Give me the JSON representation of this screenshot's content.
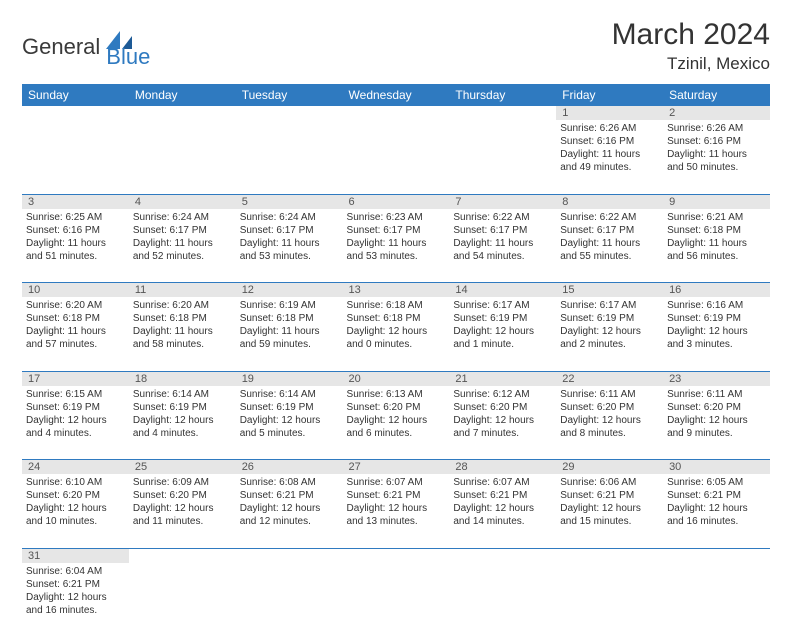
{
  "brand": {
    "general": "General",
    "blue": "Blue"
  },
  "title": "March 2024",
  "location": "Tzinil, Mexico",
  "headers": [
    "Sunday",
    "Monday",
    "Tuesday",
    "Wednesday",
    "Thursday",
    "Friday",
    "Saturday"
  ],
  "colors": {
    "header_bg": "#2f7ac0",
    "header_fg": "#ffffff",
    "daynum_bg": "#e6e6e6",
    "border": "#2f7ac0",
    "text": "#333333"
  },
  "typography": {
    "title_fontsize": 30,
    "location_fontsize": 17,
    "header_fontsize": 12,
    "daynum_fontsize": 11,
    "cell_fontsize": 10
  },
  "weeks": [
    [
      null,
      null,
      null,
      null,
      null,
      {
        "day": "1",
        "sunrise": "Sunrise: 6:26 AM",
        "sunset": "Sunset: 6:16 PM",
        "daylight": "Daylight: 11 hours and 49 minutes."
      },
      {
        "day": "2",
        "sunrise": "Sunrise: 6:26 AM",
        "sunset": "Sunset: 6:16 PM",
        "daylight": "Daylight: 11 hours and 50 minutes."
      }
    ],
    [
      {
        "day": "3",
        "sunrise": "Sunrise: 6:25 AM",
        "sunset": "Sunset: 6:16 PM",
        "daylight": "Daylight: 11 hours and 51 minutes."
      },
      {
        "day": "4",
        "sunrise": "Sunrise: 6:24 AM",
        "sunset": "Sunset: 6:17 PM",
        "daylight": "Daylight: 11 hours and 52 minutes."
      },
      {
        "day": "5",
        "sunrise": "Sunrise: 6:24 AM",
        "sunset": "Sunset: 6:17 PM",
        "daylight": "Daylight: 11 hours and 53 minutes."
      },
      {
        "day": "6",
        "sunrise": "Sunrise: 6:23 AM",
        "sunset": "Sunset: 6:17 PM",
        "daylight": "Daylight: 11 hours and 53 minutes."
      },
      {
        "day": "7",
        "sunrise": "Sunrise: 6:22 AM",
        "sunset": "Sunset: 6:17 PM",
        "daylight": "Daylight: 11 hours and 54 minutes."
      },
      {
        "day": "8",
        "sunrise": "Sunrise: 6:22 AM",
        "sunset": "Sunset: 6:17 PM",
        "daylight": "Daylight: 11 hours and 55 minutes."
      },
      {
        "day": "9",
        "sunrise": "Sunrise: 6:21 AM",
        "sunset": "Sunset: 6:18 PM",
        "daylight": "Daylight: 11 hours and 56 minutes."
      }
    ],
    [
      {
        "day": "10",
        "sunrise": "Sunrise: 6:20 AM",
        "sunset": "Sunset: 6:18 PM",
        "daylight": "Daylight: 11 hours and 57 minutes."
      },
      {
        "day": "11",
        "sunrise": "Sunrise: 6:20 AM",
        "sunset": "Sunset: 6:18 PM",
        "daylight": "Daylight: 11 hours and 58 minutes."
      },
      {
        "day": "12",
        "sunrise": "Sunrise: 6:19 AM",
        "sunset": "Sunset: 6:18 PM",
        "daylight": "Daylight: 11 hours and 59 minutes."
      },
      {
        "day": "13",
        "sunrise": "Sunrise: 6:18 AM",
        "sunset": "Sunset: 6:18 PM",
        "daylight": "Daylight: 12 hours and 0 minutes."
      },
      {
        "day": "14",
        "sunrise": "Sunrise: 6:17 AM",
        "sunset": "Sunset: 6:19 PM",
        "daylight": "Daylight: 12 hours and 1 minute."
      },
      {
        "day": "15",
        "sunrise": "Sunrise: 6:17 AM",
        "sunset": "Sunset: 6:19 PM",
        "daylight": "Daylight: 12 hours and 2 minutes."
      },
      {
        "day": "16",
        "sunrise": "Sunrise: 6:16 AM",
        "sunset": "Sunset: 6:19 PM",
        "daylight": "Daylight: 12 hours and 3 minutes."
      }
    ],
    [
      {
        "day": "17",
        "sunrise": "Sunrise: 6:15 AM",
        "sunset": "Sunset: 6:19 PM",
        "daylight": "Daylight: 12 hours and 4 minutes."
      },
      {
        "day": "18",
        "sunrise": "Sunrise: 6:14 AM",
        "sunset": "Sunset: 6:19 PM",
        "daylight": "Daylight: 12 hours and 4 minutes."
      },
      {
        "day": "19",
        "sunrise": "Sunrise: 6:14 AM",
        "sunset": "Sunset: 6:19 PM",
        "daylight": "Daylight: 12 hours and 5 minutes."
      },
      {
        "day": "20",
        "sunrise": "Sunrise: 6:13 AM",
        "sunset": "Sunset: 6:20 PM",
        "daylight": "Daylight: 12 hours and 6 minutes."
      },
      {
        "day": "21",
        "sunrise": "Sunrise: 6:12 AM",
        "sunset": "Sunset: 6:20 PM",
        "daylight": "Daylight: 12 hours and 7 minutes."
      },
      {
        "day": "22",
        "sunrise": "Sunrise: 6:11 AM",
        "sunset": "Sunset: 6:20 PM",
        "daylight": "Daylight: 12 hours and 8 minutes."
      },
      {
        "day": "23",
        "sunrise": "Sunrise: 6:11 AM",
        "sunset": "Sunset: 6:20 PM",
        "daylight": "Daylight: 12 hours and 9 minutes."
      }
    ],
    [
      {
        "day": "24",
        "sunrise": "Sunrise: 6:10 AM",
        "sunset": "Sunset: 6:20 PM",
        "daylight": "Daylight: 12 hours and 10 minutes."
      },
      {
        "day": "25",
        "sunrise": "Sunrise: 6:09 AM",
        "sunset": "Sunset: 6:20 PM",
        "daylight": "Daylight: 12 hours and 11 minutes."
      },
      {
        "day": "26",
        "sunrise": "Sunrise: 6:08 AM",
        "sunset": "Sunset: 6:21 PM",
        "daylight": "Daylight: 12 hours and 12 minutes."
      },
      {
        "day": "27",
        "sunrise": "Sunrise: 6:07 AM",
        "sunset": "Sunset: 6:21 PM",
        "daylight": "Daylight: 12 hours and 13 minutes."
      },
      {
        "day": "28",
        "sunrise": "Sunrise: 6:07 AM",
        "sunset": "Sunset: 6:21 PM",
        "daylight": "Daylight: 12 hours and 14 minutes."
      },
      {
        "day": "29",
        "sunrise": "Sunrise: 6:06 AM",
        "sunset": "Sunset: 6:21 PM",
        "daylight": "Daylight: 12 hours and 15 minutes."
      },
      {
        "day": "30",
        "sunrise": "Sunrise: 6:05 AM",
        "sunset": "Sunset: 6:21 PM",
        "daylight": "Daylight: 12 hours and 16 minutes."
      }
    ],
    [
      {
        "day": "31",
        "sunrise": "Sunrise: 6:04 AM",
        "sunset": "Sunset: 6:21 PM",
        "daylight": "Daylight: 12 hours and 16 minutes."
      },
      null,
      null,
      null,
      null,
      null,
      null
    ]
  ]
}
